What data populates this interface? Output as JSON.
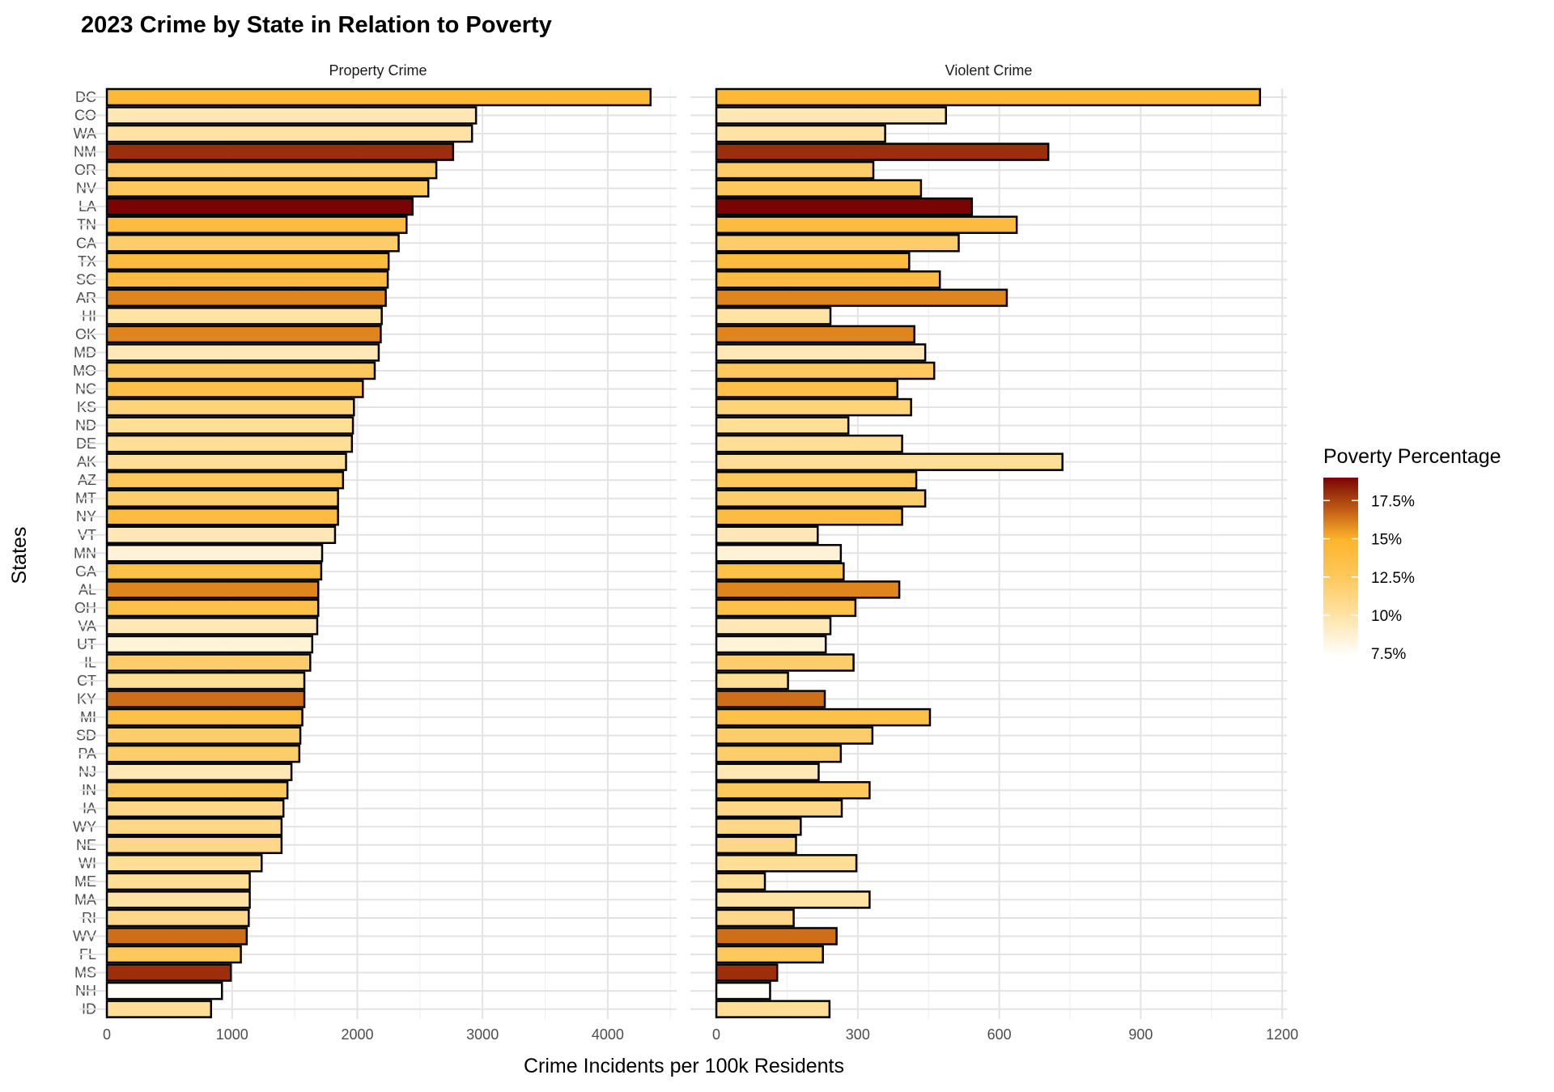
{
  "chart_data": {
    "type": "bar",
    "title": "2023 Crime by State in Relation to Poverty",
    "xlabel": "Crime Incidents per 100k Residents",
    "ylabel": "States",
    "legend": {
      "title": "Poverty Percentage",
      "placement": "right",
      "ticks": [
        "7.5%",
        "10%",
        "12.5%",
        "15%",
        "17.5%"
      ],
      "tick_values": [
        7.5,
        10,
        12.5,
        15,
        17.5
      ],
      "range": [
        7.3,
        19
      ]
    },
    "categories": [
      "DC",
      "CO",
      "WA",
      "NM",
      "OR",
      "NV",
      "LA",
      "TN",
      "CA",
      "TX",
      "SC",
      "AR",
      "HI",
      "OK",
      "MD",
      "MO",
      "NC",
      "KS",
      "ND",
      "DE",
      "AK",
      "AZ",
      "MT",
      "NY",
      "VT",
      "MN",
      "GA",
      "AL",
      "OH",
      "VA",
      "UT",
      "IL",
      "CT",
      "KY",
      "MI",
      "SD",
      "PA",
      "NJ",
      "IN",
      "IA",
      "WY",
      "NE",
      "WI",
      "ME",
      "MA",
      "RI",
      "WV",
      "FL",
      "MS",
      "NH",
      "ID"
    ],
    "poverty": [
      14.5,
      9.5,
      10,
      18,
      12,
      12.5,
      19,
      14,
      12,
      14,
      14,
      16,
      10,
      16,
      9.5,
      12.5,
      13.5,
      11.5,
      10.5,
      10.5,
      10.5,
      12.5,
      12,
      14,
      9.5,
      8.5,
      13.5,
      16,
      13.5,
      9.5,
      8.5,
      12,
      10.5,
      16.5,
      13.5,
      12,
      12,
      9.5,
      12.5,
      11,
      11,
      11,
      10.5,
      10.5,
      10,
      11,
      16.5,
      12.5,
      18,
      7.5,
      10.5
    ],
    "panels": [
      {
        "name": "Property Crime",
        "xlim": [
          -220,
          4550
        ],
        "ticks": [
          0,
          1000,
          2000,
          3000,
          4000
        ],
        "tick_labels": [
          "0",
          "1000",
          "2000",
          "3000",
          "4000"
        ],
        "values": [
          4342,
          2948,
          2916,
          2765,
          2631,
          2567,
          2441,
          2393,
          2330,
          2250,
          2243,
          2227,
          2195,
          2187,
          2171,
          2139,
          2044,
          1973,
          1965,
          1957,
          1910,
          1886,
          1846,
          1846,
          1822,
          1719,
          1712,
          1688,
          1688,
          1680,
          1640,
          1624,
          1577,
          1577,
          1561,
          1545,
          1537,
          1474,
          1442,
          1410,
          1395,
          1395,
          1236,
          1141,
          1141,
          1133,
          1117,
          1070,
          990,
          919,
          832
        ]
      },
      {
        "name": "Violent Crime",
        "xlim": [
          -55,
          1210
        ],
        "ticks": [
          0,
          300,
          600,
          900,
          1200
        ],
        "tick_labels": [
          "0",
          "300",
          "600",
          "900",
          "1200"
        ],
        "values": [
          1153,
          487,
          358,
          704,
          333,
          434,
          542,
          637,
          514,
          409,
          474,
          616,
          242,
          420,
          443,
          462,
          384,
          413,
          280,
          394,
          734,
          424,
          443,
          394,
          215,
          264,
          270,
          388,
          295,
          242,
          232,
          291,
          152,
          230,
          453,
          331,
          264,
          217,
          325,
          266,
          179,
          169,
          297,
          103,
          325,
          164,
          255,
          226,
          129,
          114,
          240
        ]
      }
    ]
  }
}
